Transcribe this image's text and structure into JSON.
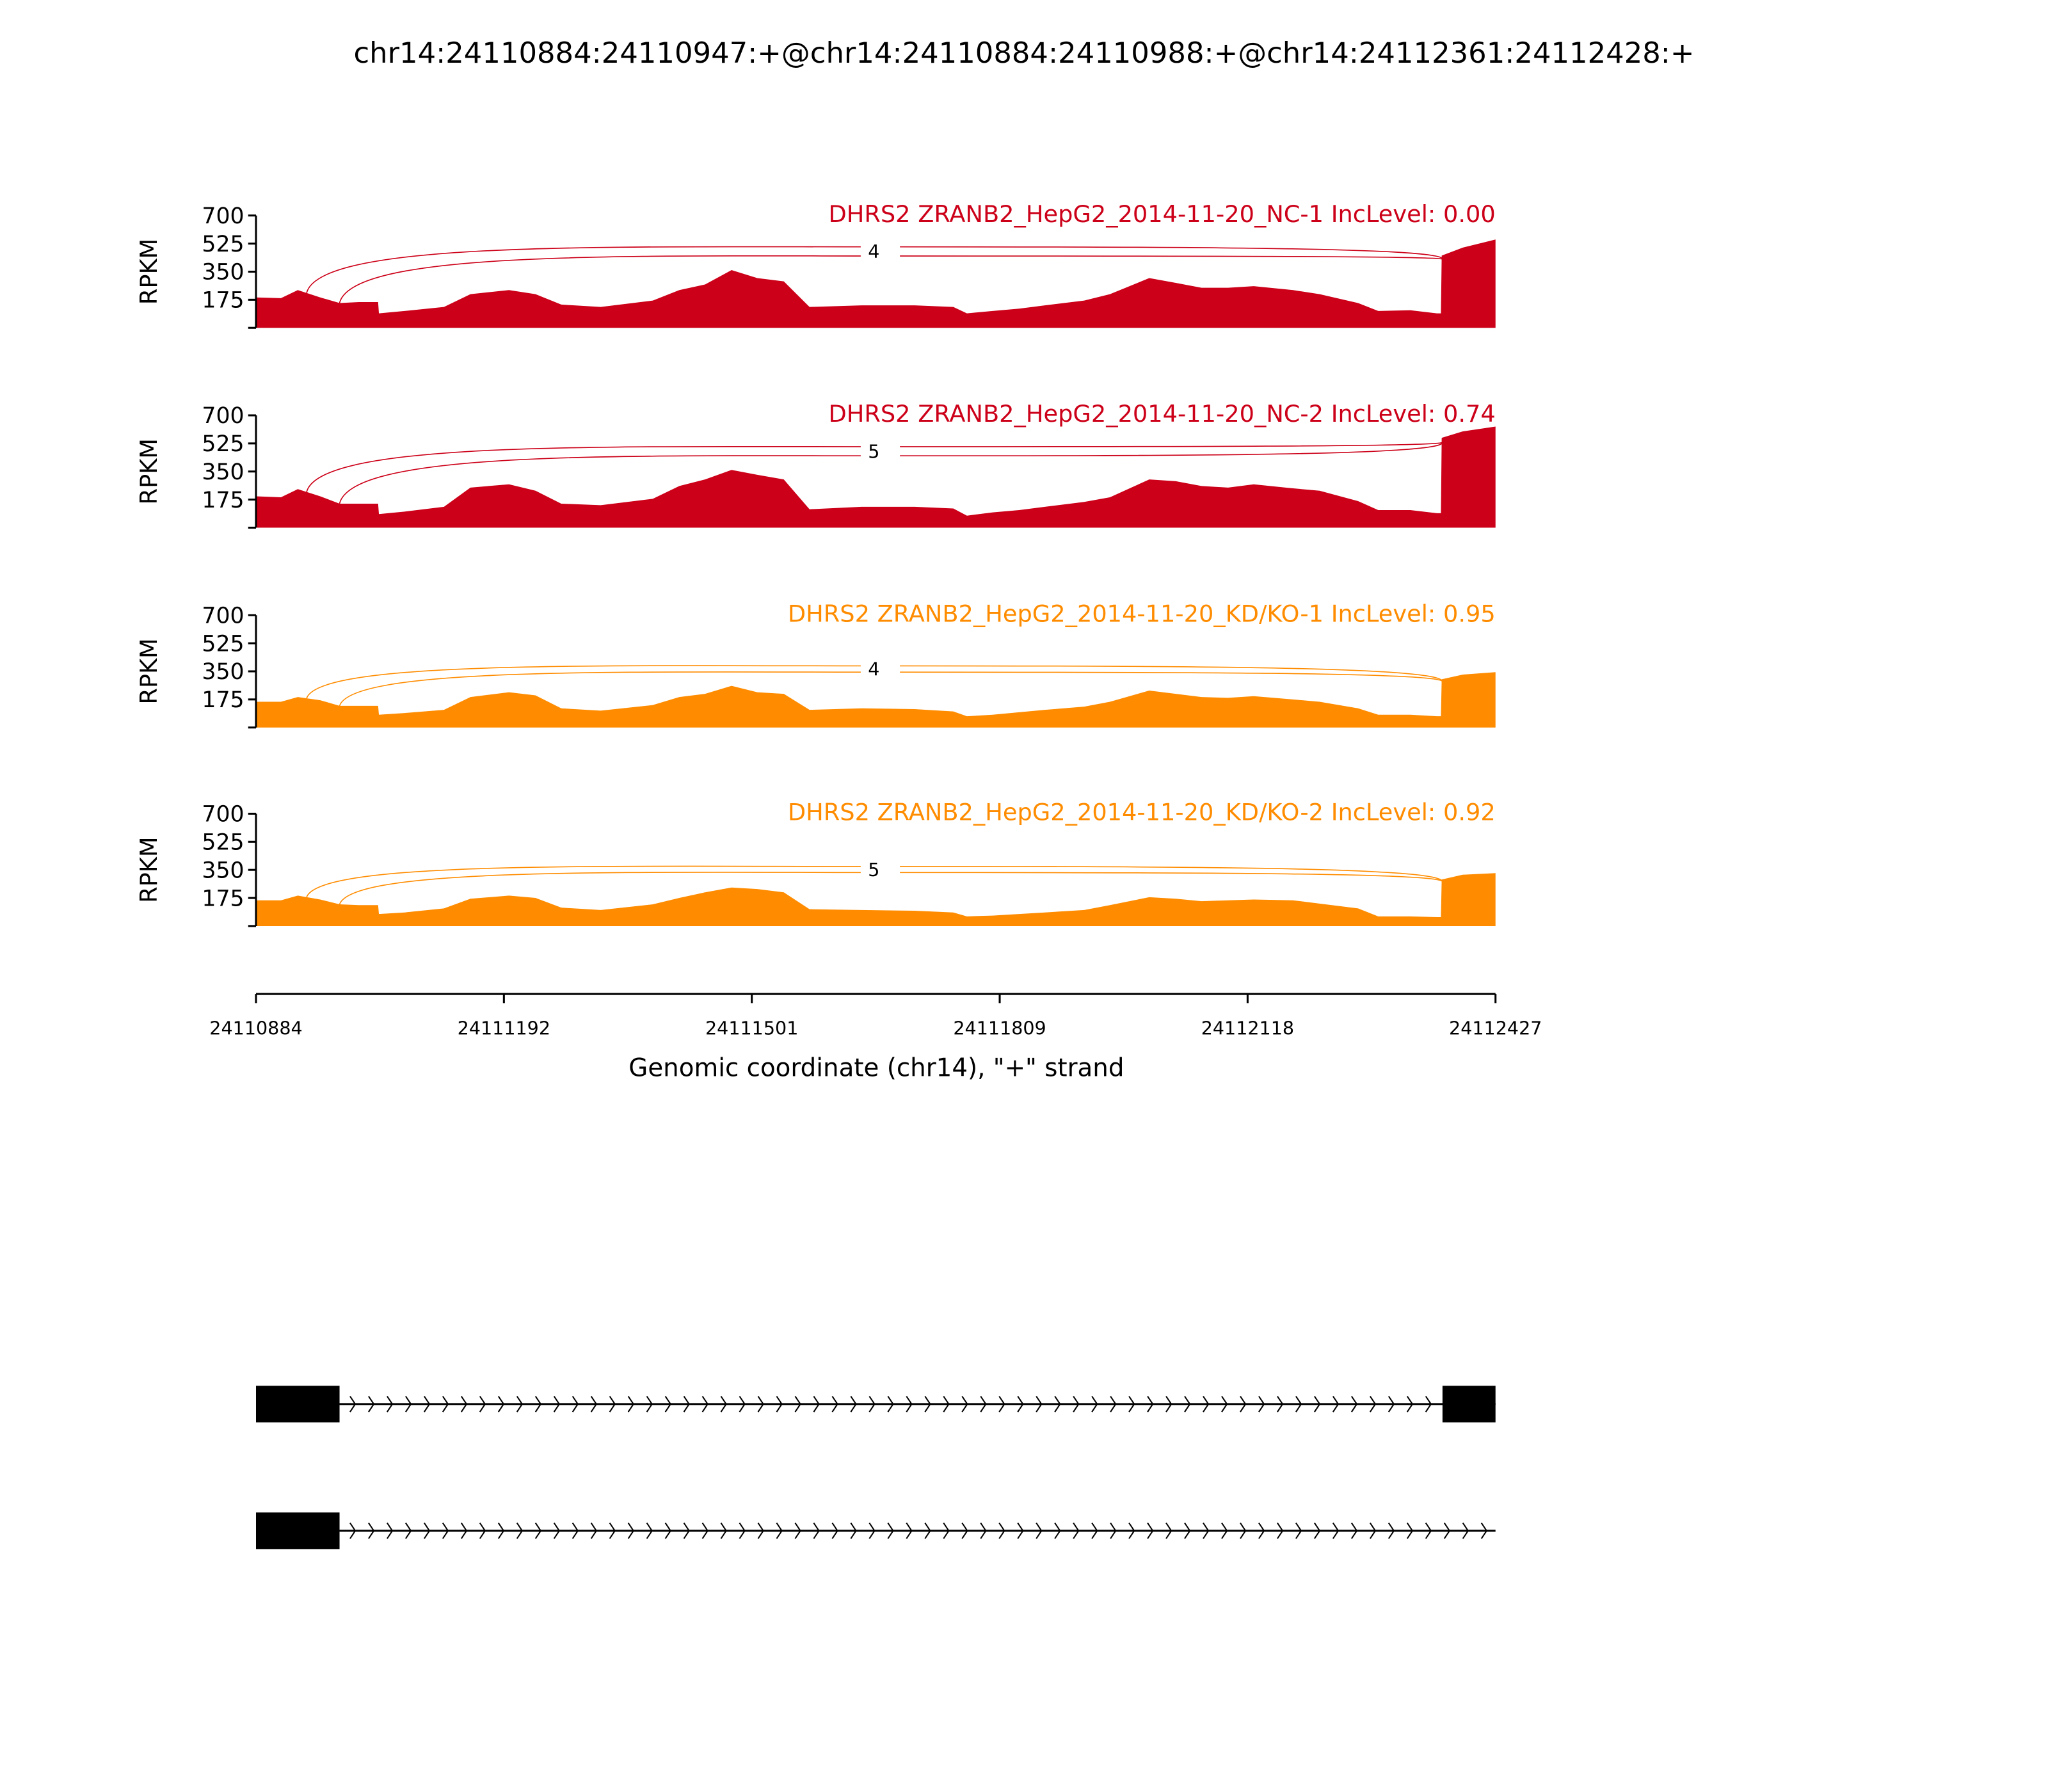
{
  "title": "chr14:24110884:24110947:+@chr14:24110884:24110988:+@chr14:24112361:24112428:+",
  "colors": {
    "nc": "#cc0018",
    "kd": "#ff8c00",
    "gene": "#000000"
  },
  "chart_data": {
    "type": "area",
    "subtype": "sashimi",
    "ylabel": "RPKM",
    "ylim": [
      0,
      700
    ],
    "yticks": [
      175,
      350,
      525,
      700
    ],
    "xlabel": "Genomic coordinate (chr14), \"+\" strand",
    "xlim": [
      24110884,
      24112427
    ],
    "xticks": [
      "24110884",
      "24111192",
      "24111501",
      "24111809",
      "24112118",
      "24112427"
    ],
    "x": [
      24110884,
      24110915,
      24110936,
      24110964,
      24110988,
      24111012,
      24111036,
      24111037,
      24111069,
      24111118,
      24111151,
      24111199,
      24111232,
      24111264,
      24111313,
      24111378,
      24111411,
      24111443,
      24111476,
      24111508,
      24111541,
      24111573,
      24111638,
      24111704,
      24111752,
      24111769,
      24111801,
      24111834,
      24111866,
      24111915,
      24111947,
      24111996,
      24112029,
      24112061,
      24112094,
      24112126,
      24112175,
      24112208,
      24112256,
      24112281,
      24112321,
      24112354,
      24112359,
      24112360,
      24112386,
      24112427
    ],
    "tracks": [
      {
        "label": "DHRS2 ZRANB2_HepG2_2014-11-20_NC-1 IncLevel: 0.00",
        "color_key": "nc",
        "junction_count": "4",
        "values": [
          190,
          185,
          235,
          190,
          155,
          160,
          160,
          90,
          105,
          130,
          210,
          235,
          210,
          145,
          130,
          170,
          235,
          270,
          360,
          310,
          290,
          130,
          140,
          140,
          130,
          90,
          105,
          120,
          140,
          170,
          210,
          310,
          280,
          250,
          250,
          260,
          235,
          210,
          155,
          105,
          110,
          90,
          90,
          450,
          500,
          550
        ]
      },
      {
        "label": "DHRS2 ZRANB2_HepG2_2014-11-20_NC-2 IncLevel: 0.74",
        "color_key": "nc",
        "junction_count": "5",
        "values": [
          195,
          190,
          240,
          195,
          150,
          150,
          150,
          85,
          100,
          130,
          250,
          270,
          230,
          150,
          140,
          180,
          260,
          300,
          360,
          330,
          300,
          115,
          130,
          130,
          120,
          75,
          95,
          110,
          130,
          160,
          190,
          300,
          290,
          260,
          250,
          270,
          245,
          230,
          165,
          110,
          110,
          90,
          90,
          560,
          600,
          630
        ]
      },
      {
        "label": "DHRS2 ZRANB2_HepG2_2014-11-20_KD/KO-1 IncLevel: 0.95",
        "color_key": "kd",
        "junction_count": "4",
        "values": [
          160,
          160,
          190,
          170,
          135,
          135,
          135,
          80,
          90,
          110,
          190,
          220,
          200,
          120,
          105,
          140,
          190,
          210,
          260,
          220,
          210,
          110,
          120,
          115,
          100,
          70,
          80,
          95,
          110,
          130,
          160,
          230,
          210,
          190,
          185,
          195,
          175,
          160,
          120,
          80,
          80,
          70,
          70,
          300,
          330,
          345
        ]
      },
      {
        "label": "DHRS2 ZRANB2_HepG2_2014-11-20_KD/KO-2 IncLevel: 0.92",
        "color_key": "kd",
        "junction_count": "5",
        "values": [
          160,
          160,
          190,
          165,
          135,
          130,
          130,
          75,
          85,
          110,
          170,
          190,
          175,
          115,
          100,
          135,
          175,
          210,
          240,
          230,
          210,
          105,
          100,
          95,
          85,
          60,
          65,
          75,
          85,
          100,
          130,
          180,
          170,
          155,
          160,
          165,
          160,
          140,
          110,
          60,
          60,
          55,
          55,
          290,
          320,
          330
        ]
      }
    ],
    "junctions": [
      {
        "start": 24110947,
        "end": 24112361
      },
      {
        "start": 24110988,
        "end": 24112361
      }
    ],
    "gene_models": [
      {
        "strand": "+",
        "exons": [
          [
            24110884,
            24110988
          ],
          [
            24112361,
            24112427
          ]
        ]
      },
      {
        "strand": "+",
        "exons": [
          [
            24110884,
            24110988
          ]
        ]
      }
    ]
  }
}
